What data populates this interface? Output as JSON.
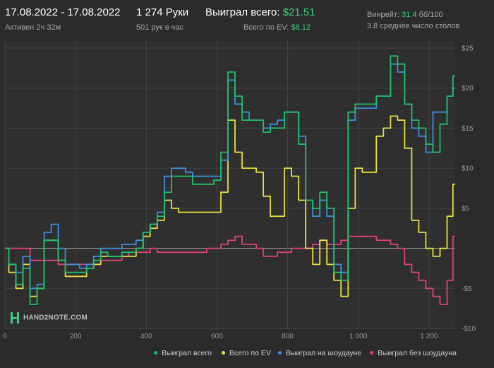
{
  "header": {
    "date_range": "17.08.2022 - 17.08.2022",
    "active": "Активен 2ч 32м",
    "hands": "1 274 Руки",
    "hands_per_hour": "501 рук в час",
    "won_total_label": "Выиграл всего:",
    "won_total_value": "$21.51",
    "ev_label": "Всего по EV:",
    "ev_value": "$8.12",
    "winrate_label": "Винрейт:",
    "winrate_value": "31.4",
    "winrate_unit": "бб/100",
    "tables": "3.8 среднее число столов"
  },
  "logo": {
    "text": "HAND2NOTE.COM",
    "icon": "hand2note-logo-icon"
  },
  "colors": {
    "accent_green": "#3fcf7a",
    "background": "#2b2b2b"
  },
  "chart_data": {
    "type": "line",
    "xlim": [
      0,
      1274
    ],
    "ylim": [
      -10,
      25
    ],
    "x_ticks": [
      0,
      200,
      400,
      600,
      800,
      1000,
      1200
    ],
    "x_tick_labels": [
      "0",
      "200",
      "400",
      "600",
      "800",
      "1 000",
      "1 200"
    ],
    "y_ticks": [
      -10,
      -5,
      0,
      5,
      10,
      15,
      20,
      25
    ],
    "y_tick_labels": [
      "-$10",
      "-$5",
      "",
      "$5",
      "$10",
      "$15",
      "$20",
      "$25"
    ],
    "grid": true,
    "legend_position": "bottom-right",
    "x": [
      0,
      20,
      40,
      60,
      80,
      100,
      120,
      140,
      160,
      180,
      200,
      220,
      240,
      260,
      280,
      300,
      320,
      340,
      360,
      380,
      400,
      420,
      440,
      460,
      480,
      500,
      520,
      540,
      560,
      580,
      600,
      620,
      640,
      660,
      680,
      700,
      720,
      740,
      760,
      780,
      800,
      820,
      840,
      860,
      880,
      900,
      920,
      940,
      960,
      980,
      1000,
      1020,
      1040,
      1060,
      1080,
      1100,
      1120,
      1140,
      1160,
      1180,
      1200,
      1220,
      1240,
      1260,
      1274
    ],
    "series": [
      {
        "name": "Выиграл всего",
        "color": "#1fbf6a",
        "values": [
          0,
          -2,
          -4.5,
          -2.5,
          -7,
          -5,
          1,
          1,
          -1.5,
          -3,
          -3,
          -3,
          -2.5,
          -1.5,
          -0.5,
          -1,
          -1,
          -0.5,
          -0.5,
          0,
          2,
          3,
          4,
          7,
          9,
          9,
          9,
          8,
          8,
          8,
          8.5,
          12,
          22,
          19,
          16,
          16,
          16,
          14.5,
          15,
          15,
          17,
          17,
          13,
          6,
          5,
          7,
          5,
          -3,
          -4,
          17,
          18,
          18,
          18,
          19,
          19,
          24,
          23,
          18,
          16,
          15,
          13,
          12,
          15.5,
          19,
          21.5
        ]
      },
      {
        "name": "Всего по EV",
        "color": "#e8e040",
        "values": [
          0,
          -3,
          -5,
          -2,
          -6,
          -5,
          1,
          1,
          -1.5,
          -3.5,
          -3.5,
          -3.5,
          -2.5,
          -2,
          -1,
          -1,
          -1,
          -1,
          -1,
          0,
          1.5,
          2.5,
          3.5,
          6,
          5,
          4.5,
          4.5,
          4.5,
          4.5,
          4.5,
          4.5,
          7,
          16,
          12,
          10,
          10,
          9.5,
          6.5,
          4,
          4,
          10,
          9,
          6,
          0,
          -2,
          1,
          -2,
          -4,
          -6,
          5,
          10,
          9.5,
          9.5,
          14,
          15,
          16.5,
          16,
          12.5,
          3.5,
          2,
          0,
          -1,
          0,
          4,
          8
        ]
      },
      {
        "name": "Выиграл на шоудауне",
        "color": "#3b8fe0",
        "values": [
          0,
          -2,
          -3,
          -1,
          -5,
          -4.5,
          2,
          3,
          0,
          -2,
          -2,
          -2.5,
          -2,
          -1,
          0,
          0,
          0,
          0.5,
          0.5,
          1,
          2,
          3,
          4.5,
          9,
          10,
          10,
          9.5,
          9,
          9,
          9,
          9,
          11,
          21,
          18,
          17,
          16,
          16,
          15,
          15.5,
          16,
          17,
          17,
          14,
          6,
          4,
          6,
          4,
          -2,
          -3,
          16,
          17.5,
          17.5,
          17.5,
          19,
          19,
          23,
          22,
          18,
          15,
          14,
          12,
          17,
          17,
          19,
          20
        ]
      },
      {
        "name": "Выиграл без шоудауна",
        "color": "#e0407a",
        "values": [
          0,
          0,
          0,
          0,
          -1.5,
          -1.5,
          -1.5,
          -1.5,
          -2,
          -2,
          -2,
          -2,
          -2,
          -2,
          -1.5,
          -1.5,
          -1.5,
          -1,
          -0.5,
          -0.5,
          -0.5,
          0,
          -0.5,
          -0.5,
          -0.5,
          -0.5,
          -0.5,
          -0.5,
          -0.5,
          0,
          0,
          0.5,
          1,
          1.5,
          0.5,
          0.5,
          0,
          -1,
          -1,
          -0.5,
          -0.5,
          0,
          0,
          0,
          0.5,
          1,
          0.5,
          0.5,
          1,
          1.5,
          1.5,
          1.5,
          1.5,
          1,
          1,
          0.5,
          0,
          -2,
          -3,
          -4,
          -5,
          -6,
          -7,
          -4,
          1.5
        ]
      }
    ]
  }
}
